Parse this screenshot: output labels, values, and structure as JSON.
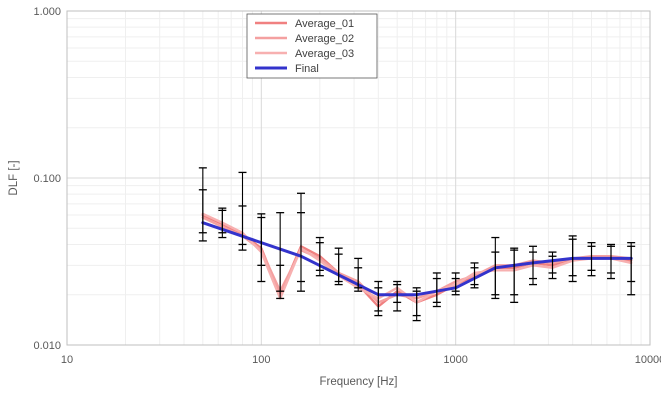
{
  "chart_data": {
    "type": "line",
    "xlabel": "Frequency [Hz]",
    "ylabel": "DLF [-]",
    "x_scale": "log",
    "y_scale": "log",
    "xlim": [
      10,
      10000
    ],
    "ylim": [
      0.01,
      1.0
    ],
    "x_tick_labels": [
      "10",
      "100",
      "1000",
      "10000"
    ],
    "y_tick_labels": [
      "0.010",
      "0.100",
      "1.000"
    ],
    "grid": true,
    "legend_position": "top-center",
    "x": [
      50,
      63,
      80,
      100,
      125,
      160,
      200,
      250,
      315,
      400,
      500,
      630,
      800,
      1000,
      1250,
      1600,
      2000,
      2500,
      3150,
      4000,
      5000,
      6300,
      8000
    ],
    "series": [
      {
        "name": "Average_01",
        "color": "#f08080",
        "values": [
          0.06,
          0.053,
          0.046,
          0.038,
          0.02,
          0.039,
          0.034,
          0.027,
          0.023,
          0.017,
          0.021,
          0.018,
          0.02,
          0.023,
          0.026,
          0.029,
          0.029,
          0.031,
          0.03,
          0.033,
          0.033,
          0.033,
          0.032
        ]
      },
      {
        "name": "Average_02",
        "color": "#f4a0a0",
        "values": [
          0.058,
          0.051,
          0.045,
          0.037,
          0.021,
          0.037,
          0.033,
          0.027,
          0.024,
          0.018,
          0.02,
          0.019,
          0.021,
          0.024,
          0.026,
          0.03,
          0.03,
          0.032,
          0.031,
          0.033,
          0.034,
          0.034,
          0.033
        ]
      },
      {
        "name": "Average_03",
        "color": "#f7b0b0",
        "values": [
          0.061,
          0.054,
          0.047,
          0.036,
          0.019,
          0.038,
          0.032,
          0.026,
          0.022,
          0.019,
          0.022,
          0.018,
          0.021,
          0.023,
          0.027,
          0.028,
          0.028,
          0.03,
          0.029,
          0.032,
          0.033,
          0.033,
          0.031
        ]
      },
      {
        "name": "Final",
        "color": "#3333cc",
        "x": [
          50,
          160,
          400,
          630,
          1000,
          1600,
          2500,
          4000,
          8000
        ],
        "values": [
          0.054,
          0.034,
          0.02,
          0.02,
          0.022,
          0.029,
          0.031,
          0.033,
          0.033
        ]
      }
    ],
    "error_bars": {
      "color": "#000000",
      "items": [
        [
          50,
          0.047,
          0.115
        ],
        [
          50,
          0.042,
          0.085
        ],
        [
          63,
          0.044,
          0.066
        ],
        [
          63,
          0.047,
          0.064
        ],
        [
          80,
          0.037,
          0.108
        ],
        [
          80,
          0.04,
          0.068
        ],
        [
          100,
          0.024,
          0.061
        ],
        [
          100,
          0.03,
          0.058
        ],
        [
          125,
          0.019,
          0.062
        ],
        [
          125,
          0.021,
          0.03
        ],
        [
          160,
          0.021,
          0.081
        ],
        [
          160,
          0.024,
          0.062
        ],
        [
          200,
          0.026,
          0.044
        ],
        [
          200,
          0.028,
          0.041
        ],
        [
          250,
          0.023,
          0.038
        ],
        [
          250,
          0.024,
          0.035
        ],
        [
          315,
          0.021,
          0.033
        ],
        [
          315,
          0.022,
          0.029
        ],
        [
          400,
          0.015,
          0.024
        ],
        [
          400,
          0.016,
          0.022
        ],
        [
          500,
          0.016,
          0.024
        ],
        [
          500,
          0.018,
          0.023
        ],
        [
          630,
          0.014,
          0.022
        ],
        [
          630,
          0.015,
          0.021
        ],
        [
          800,
          0.017,
          0.027
        ],
        [
          800,
          0.018,
          0.025
        ],
        [
          1000,
          0.02,
          0.027
        ],
        [
          1000,
          0.021,
          0.025
        ],
        [
          1250,
          0.022,
          0.031
        ],
        [
          1250,
          0.023,
          0.029
        ],
        [
          1600,
          0.019,
          0.044
        ],
        [
          1600,
          0.02,
          0.036
        ],
        [
          2000,
          0.018,
          0.038
        ],
        [
          2000,
          0.02,
          0.037
        ],
        [
          2500,
          0.023,
          0.039
        ],
        [
          2500,
          0.025,
          0.036
        ],
        [
          3150,
          0.025,
          0.036
        ],
        [
          3150,
          0.027,
          0.034
        ],
        [
          4000,
          0.024,
          0.045
        ],
        [
          4000,
          0.026,
          0.043
        ],
        [
          5000,
          0.026,
          0.041
        ],
        [
          5000,
          0.028,
          0.039
        ],
        [
          6300,
          0.025,
          0.04
        ],
        [
          6300,
          0.027,
          0.039
        ],
        [
          8000,
          0.02,
          0.041
        ],
        [
          8000,
          0.024,
          0.039
        ]
      ]
    }
  }
}
